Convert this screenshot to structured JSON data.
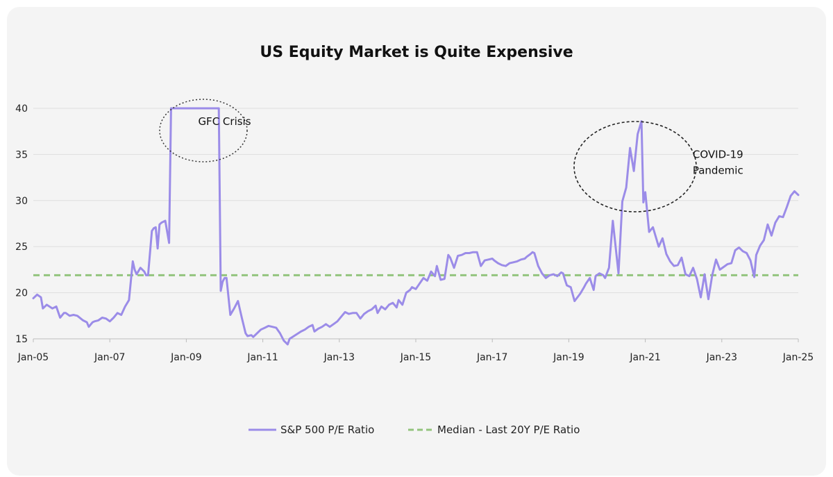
{
  "chart_data": {
    "type": "line",
    "title": "US Equity Market is Quite Expensive",
    "xlabel": "",
    "ylabel": "",
    "x_tick_labels": [
      "Jan-05",
      "Jan-07",
      "Jan-09",
      "Jan-11",
      "Jan-13",
      "Jan-15",
      "Jan-17",
      "Jan-19",
      "Jan-21",
      "Jan-23",
      "Jan-25"
    ],
    "y_tick_labels": [
      "15",
      "20",
      "25",
      "30",
      "35",
      "40"
    ],
    "xlim": [
      2005.0,
      2025.0
    ],
    "ylim": [
      15,
      40
    ],
    "grid": true,
    "legend_position": "bottom-center",
    "series": [
      {
        "name": "S&P 500 P/E Ratio",
        "color": "#9b8ce8",
        "style": "solid",
        "x": [
          2005.0,
          2005.1,
          2005.2,
          2005.25,
          2005.35,
          2005.5,
          2005.6,
          2005.7,
          2005.8,
          2005.85,
          2005.95,
          2006.05,
          2006.15,
          2006.3,
          2006.4,
          2006.45,
          2006.55,
          2006.6,
          2006.7,
          2006.8,
          2006.9,
          2007.0,
          2007.1,
          2007.2,
          2007.3,
          2007.4,
          2007.5,
          2007.6,
          2007.65,
          2007.7,
          2007.8,
          2007.9,
          2007.95,
          2008.0,
          2008.1,
          2008.15,
          2008.2,
          2008.25,
          2008.3,
          2008.35,
          2008.45,
          2008.55,
          2008.6,
          2008.63,
          2008.66,
          2009.8,
          2009.85,
          2009.9,
          2009.95,
          2010.0,
          2010.05,
          2010.15,
          2010.25,
          2010.35,
          2010.45,
          2010.55,
          2010.6,
          2010.7,
          2010.75,
          2010.85,
          2010.95,
          2011.05,
          2011.15,
          2011.25,
          2011.35,
          2011.45,
          2011.55,
          2011.65,
          2011.7,
          2012.0,
          2012.1,
          2012.2,
          2012.3,
          2012.35,
          2012.45,
          2012.55,
          2012.65,
          2012.75,
          2012.85,
          2012.95,
          2013.05,
          2013.15,
          2013.25,
          2013.35,
          2013.45,
          2013.55,
          2013.65,
          2013.75,
          2013.85,
          2013.95,
          2014.0,
          2014.1,
          2014.2,
          2014.3,
          2014.4,
          2014.5,
          2014.55,
          2014.65,
          2014.75,
          2014.85,
          2014.9,
          2015.0,
          2015.1,
          2015.2,
          2015.3,
          2015.4,
          2015.5,
          2015.55,
          2015.65,
          2015.75,
          2015.85,
          2015.9,
          2016.0,
          2016.1,
          2016.2,
          2016.3,
          2016.4,
          2016.5,
          2016.6,
          2016.7,
          2016.8,
          2016.9,
          2017.0,
          2017.05,
          2017.15,
          2017.25,
          2017.35,
          2017.45,
          2017.55,
          2017.65,
          2017.75,
          2017.85,
          2017.9,
          2018.0,
          2018.05,
          2018.1,
          2018.2,
          2018.3,
          2018.4,
          2018.5,
          2018.6,
          2018.7,
          2018.8,
          2018.85,
          2018.9,
          2018.95,
          2019.05,
          2019.15,
          2019.3,
          2019.4,
          2019.45,
          2019.55,
          2019.65,
          2019.7,
          2019.8,
          2019.9,
          2019.95,
          2020.05,
          2020.15,
          2020.3,
          2020.4,
          2020.5,
          2020.6,
          2020.7,
          2020.8,
          2020.9,
          2020.95,
          2021.0,
          2021.1,
          2021.2,
          2021.35,
          2021.45,
          2021.55,
          2021.65,
          2021.75,
          2021.85,
          2021.95,
          2022.05,
          2022.15,
          2022.25,
          2022.35,
          2022.45,
          2022.55,
          2022.65,
          2022.75,
          2022.85,
          2022.95,
          2023.05,
          2023.15,
          2023.25,
          2023.35,
          2023.45,
          2023.55,
          2023.65,
          2023.75,
          2023.85,
          2023.9,
          2024.0,
          2024.1,
          2024.2,
          2024.3,
          2024.4,
          2024.5,
          2024.6,
          2024.7,
          2024.8,
          2024.9,
          2025.0
        ],
        "y": [
          19.4,
          19.8,
          19.5,
          18.3,
          18.7,
          18.3,
          18.5,
          17.3,
          17.8,
          17.8,
          17.5,
          17.6,
          17.5,
          17.0,
          16.8,
          16.3,
          16.8,
          16.9,
          17.0,
          17.3,
          17.2,
          16.9,
          17.3,
          17.8,
          17.6,
          18.5,
          19.2,
          23.4,
          22.5,
          22.0,
          22.7,
          22.3,
          21.9,
          21.9,
          26.7,
          27.0,
          27.1,
          24.8,
          27.4,
          27.6,
          27.8,
          25.4,
          40.0,
          40.0,
          40.0,
          40.0,
          40.0,
          20.2,
          21.2,
          21.6,
          21.6,
          17.6,
          18.3,
          19.1,
          17.3,
          15.6,
          15.3,
          15.4,
          15.2,
          15.6,
          16.0,
          16.2,
          16.4,
          16.3,
          16.2,
          15.6,
          14.8,
          14.4,
          15.0,
          15.8,
          16.0,
          16.3,
          16.5,
          15.8,
          16.1,
          16.3,
          16.6,
          16.3,
          16.6,
          16.9,
          17.4,
          17.9,
          17.7,
          17.8,
          17.8,
          17.2,
          17.7,
          18.0,
          18.2,
          18.6,
          17.8,
          18.5,
          18.2,
          18.7,
          18.9,
          18.4,
          19.2,
          18.7,
          20.0,
          20.3,
          20.6,
          20.4,
          21.0,
          21.6,
          21.3,
          22.3,
          21.8,
          22.9,
          21.4,
          21.5,
          24.1,
          23.8,
          22.7,
          24.0,
          24.1,
          24.3,
          24.3,
          24.4,
          24.4,
          22.9,
          23.5,
          23.6,
          23.7,
          23.5,
          23.2,
          23.0,
          22.9,
          23.2,
          23.3,
          23.4,
          23.6,
          23.7,
          23.9,
          24.2,
          24.4,
          24.3,
          22.9,
          22.1,
          21.6,
          21.9,
          22.0,
          21.8,
          22.2,
          22.1,
          21.4,
          20.8,
          20.6,
          19.1,
          19.9,
          20.6,
          21.0,
          21.6,
          20.3,
          21.8,
          22.1,
          21.9,
          21.6,
          22.7,
          27.8,
          22.1,
          29.9,
          31.4,
          35.7,
          33.2,
          37.2,
          38.6,
          29.8,
          30.9,
          26.6,
          27.1,
          25.0,
          25.9,
          24.2,
          23.4,
          22.9,
          23.0,
          23.8,
          22.0,
          21.8,
          22.7,
          21.5,
          19.5,
          22.0,
          19.3,
          21.9,
          23.6,
          22.5,
          22.8,
          23.1,
          23.2,
          24.6,
          24.9,
          24.5,
          24.3,
          23.5,
          21.7,
          24.1,
          25.1,
          25.7,
          27.4,
          26.2,
          27.6,
          28.3,
          28.2,
          29.3,
          30.5,
          31.0,
          30.6
        ]
      },
      {
        "name": "Median - Last 20Y P/E Ratio",
        "color": "#93c47d",
        "style": "dashed",
        "x": [
          2005.0,
          2025.0
        ],
        "y": [
          21.9,
          21.9
        ]
      }
    ],
    "annotations": [
      {
        "text": "GFC Crisis",
        "x": 2010.0,
        "y": 38.2
      },
      {
        "text": "COVID-19",
        "x": 2022.9,
        "y": 34.6
      },
      {
        "text": "Pandemic",
        "x": 2022.9,
        "y": 32.9
      }
    ]
  }
}
